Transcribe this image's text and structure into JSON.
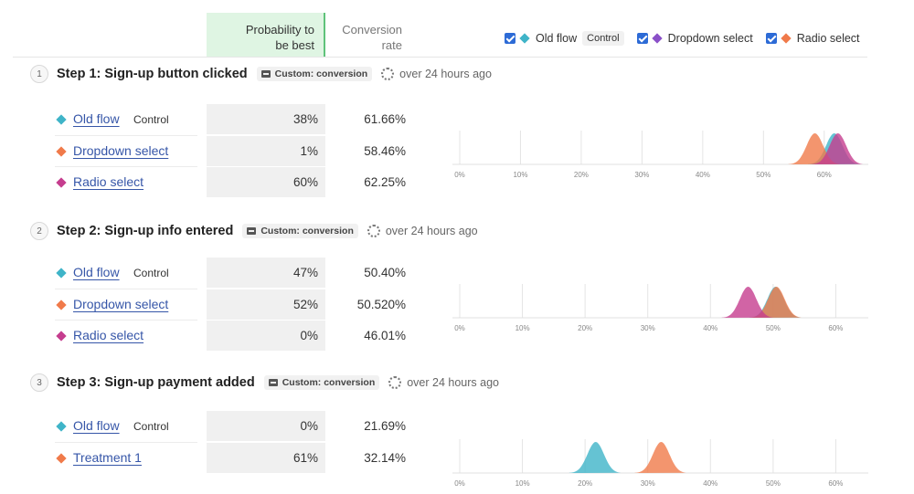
{
  "header": {
    "prob_line1": "Probability to",
    "prob_line2": "be best",
    "conv_line1": "Conversion",
    "conv_line2": "rate"
  },
  "legend": [
    {
      "label": "Old flow",
      "badge": "Control",
      "color": "#3fb4c8",
      "checked": true
    },
    {
      "label": "Dropdown select",
      "color": "#8a50c8",
      "checked": true
    },
    {
      "label": "Radio select",
      "color": "#f07a4a",
      "checked": true
    }
  ],
  "colors": {
    "blue": "#3fb4c8",
    "orange": "#f07a4a",
    "magenta": "#c53d8e",
    "purple": "#8a50c8"
  },
  "steps": [
    {
      "number": "1",
      "title": "Step 1:  Sign-up button clicked",
      "tag": "Custom: conversion",
      "time": "over 24 hours ago",
      "variants": [
        {
          "name": "Old flow",
          "badge": "Control",
          "color": "#3fb4c8",
          "prob": "38%",
          "conv": "61.66%"
        },
        {
          "name": "Dropdown select",
          "badge": "",
          "color": "#f07a4a",
          "prob": "1%",
          "conv": "58.46%"
        },
        {
          "name": "Radio select",
          "badge": "",
          "color": "#c53d8e",
          "prob": "60%",
          "conv": "62.25%"
        }
      ],
      "axis_ticks": [
        "0%",
        "10%",
        "20%",
        "30%",
        "40%",
        "50%",
        "60%"
      ],
      "axis_max": 65
    },
    {
      "number": "2",
      "title": "Step 2:  Sign-up info entered",
      "tag": "Custom: conversion",
      "time": "over 24 hours ago",
      "variants": [
        {
          "name": "Old flow",
          "badge": "Control",
          "color": "#3fb4c8",
          "prob": "47%",
          "conv": "50.40%"
        },
        {
          "name": "Dropdown select",
          "badge": "",
          "color": "#f07a4a",
          "prob": "52%",
          "conv": "50.520%"
        },
        {
          "name": "Radio select",
          "badge": "",
          "color": "#c53d8e",
          "prob": "0%",
          "conv": "46.01%"
        }
      ],
      "axis_ticks": [
        "0%",
        "10%",
        "20%",
        "30%",
        "40%",
        "50%",
        "60%"
      ],
      "axis_max": 63
    },
    {
      "number": "3",
      "title": "Step 3:  Sign-up payment added",
      "tag": "Custom: conversion",
      "time": "over 24 hours ago",
      "variants": [
        {
          "name": "Old flow",
          "badge": "Control",
          "color": "#3fb4c8",
          "prob": "0%",
          "conv": "21.69%"
        },
        {
          "name": "Treatment 1",
          "badge": "",
          "color": "#f07a4a",
          "prob": "61%",
          "conv": "32.14%"
        }
      ],
      "axis_ticks": [
        "0%",
        "10%",
        "20%",
        "30%",
        "40%",
        "50%",
        "60%"
      ],
      "axis_max": 63
    }
  ]
}
